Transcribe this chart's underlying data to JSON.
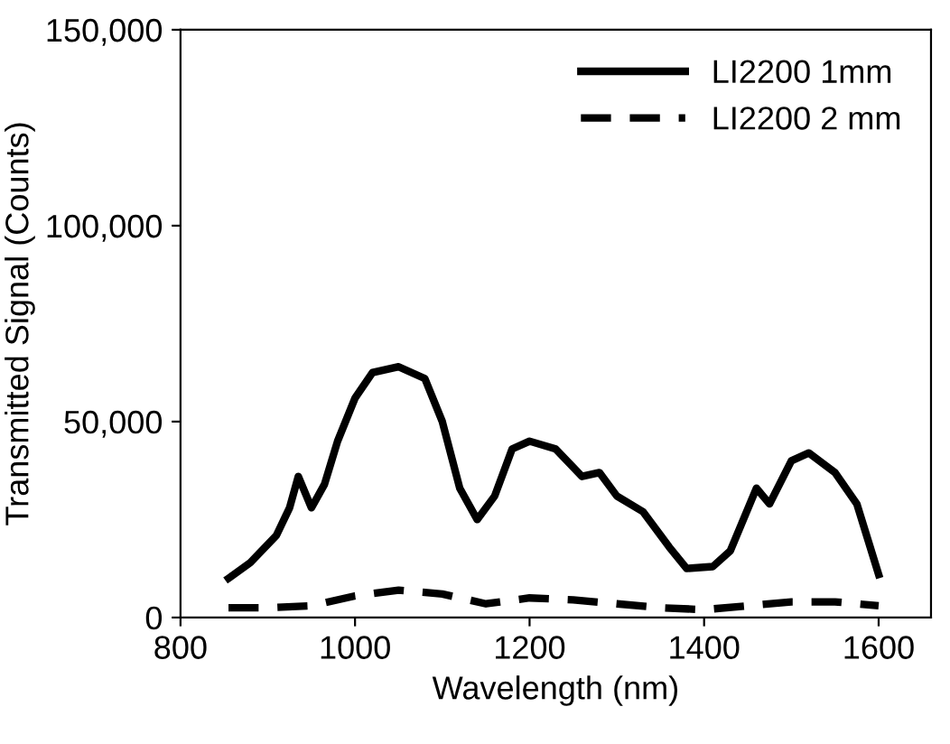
{
  "chart_data": {
    "type": "line",
    "xlabel": "Wavelength (nm)",
    "ylabel": "Transmitted Signal (Counts)",
    "xlim": [
      800,
      1660
    ],
    "xticks": [
      800,
      1000,
      1200,
      1400,
      1600
    ],
    "ylim": [
      0,
      150000
    ],
    "yticks": [
      {
        "value": 0,
        "label": "0"
      },
      {
        "value": 50000,
        "label": "50,000"
      },
      {
        "value": 100000,
        "label": "100,000"
      },
      {
        "value": 150000,
        "label": "150,000"
      }
    ],
    "grid": false,
    "legend": "top right",
    "marker": "none",
    "series": [
      {
        "name": "LI2200 1mm",
        "color": "#000000",
        "line_style": "solid",
        "x": [
          855,
          880,
          910,
          925,
          935,
          950,
          965,
          980,
          1000,
          1020,
          1050,
          1080,
          1100,
          1120,
          1140,
          1160,
          1180,
          1200,
          1230,
          1260,
          1280,
          1300,
          1330,
          1360,
          1380,
          1410,
          1430,
          1460,
          1475,
          1500,
          1520,
          1550,
          1575,
          1600
        ],
        "values": [
          10000,
          14000,
          21000,
          28000,
          36000,
          28000,
          34000,
          45000,
          56000,
          62500,
          64000,
          61000,
          50000,
          33000,
          25000,
          31000,
          43000,
          45000,
          43000,
          36000,
          37000,
          31000,
          27000,
          18000,
          12500,
          13000,
          17000,
          33000,
          29000,
          40000,
          42000,
          37000,
          29000,
          11000
        ]
      },
      {
        "name": "LI2200 2 mm",
        "color": "#000000",
        "line_style": "dashed",
        "x": [
          855,
          900,
          950,
          1000,
          1050,
          1100,
          1150,
          1200,
          1250,
          1300,
          1350,
          1400,
          1450,
          1500,
          1550,
          1600
        ],
        "values": [
          2500,
          2500,
          3000,
          5500,
          7000,
          6000,
          3500,
          5000,
          4500,
          3500,
          2500,
          2000,
          3000,
          4000,
          4000,
          3000
        ]
      }
    ]
  }
}
